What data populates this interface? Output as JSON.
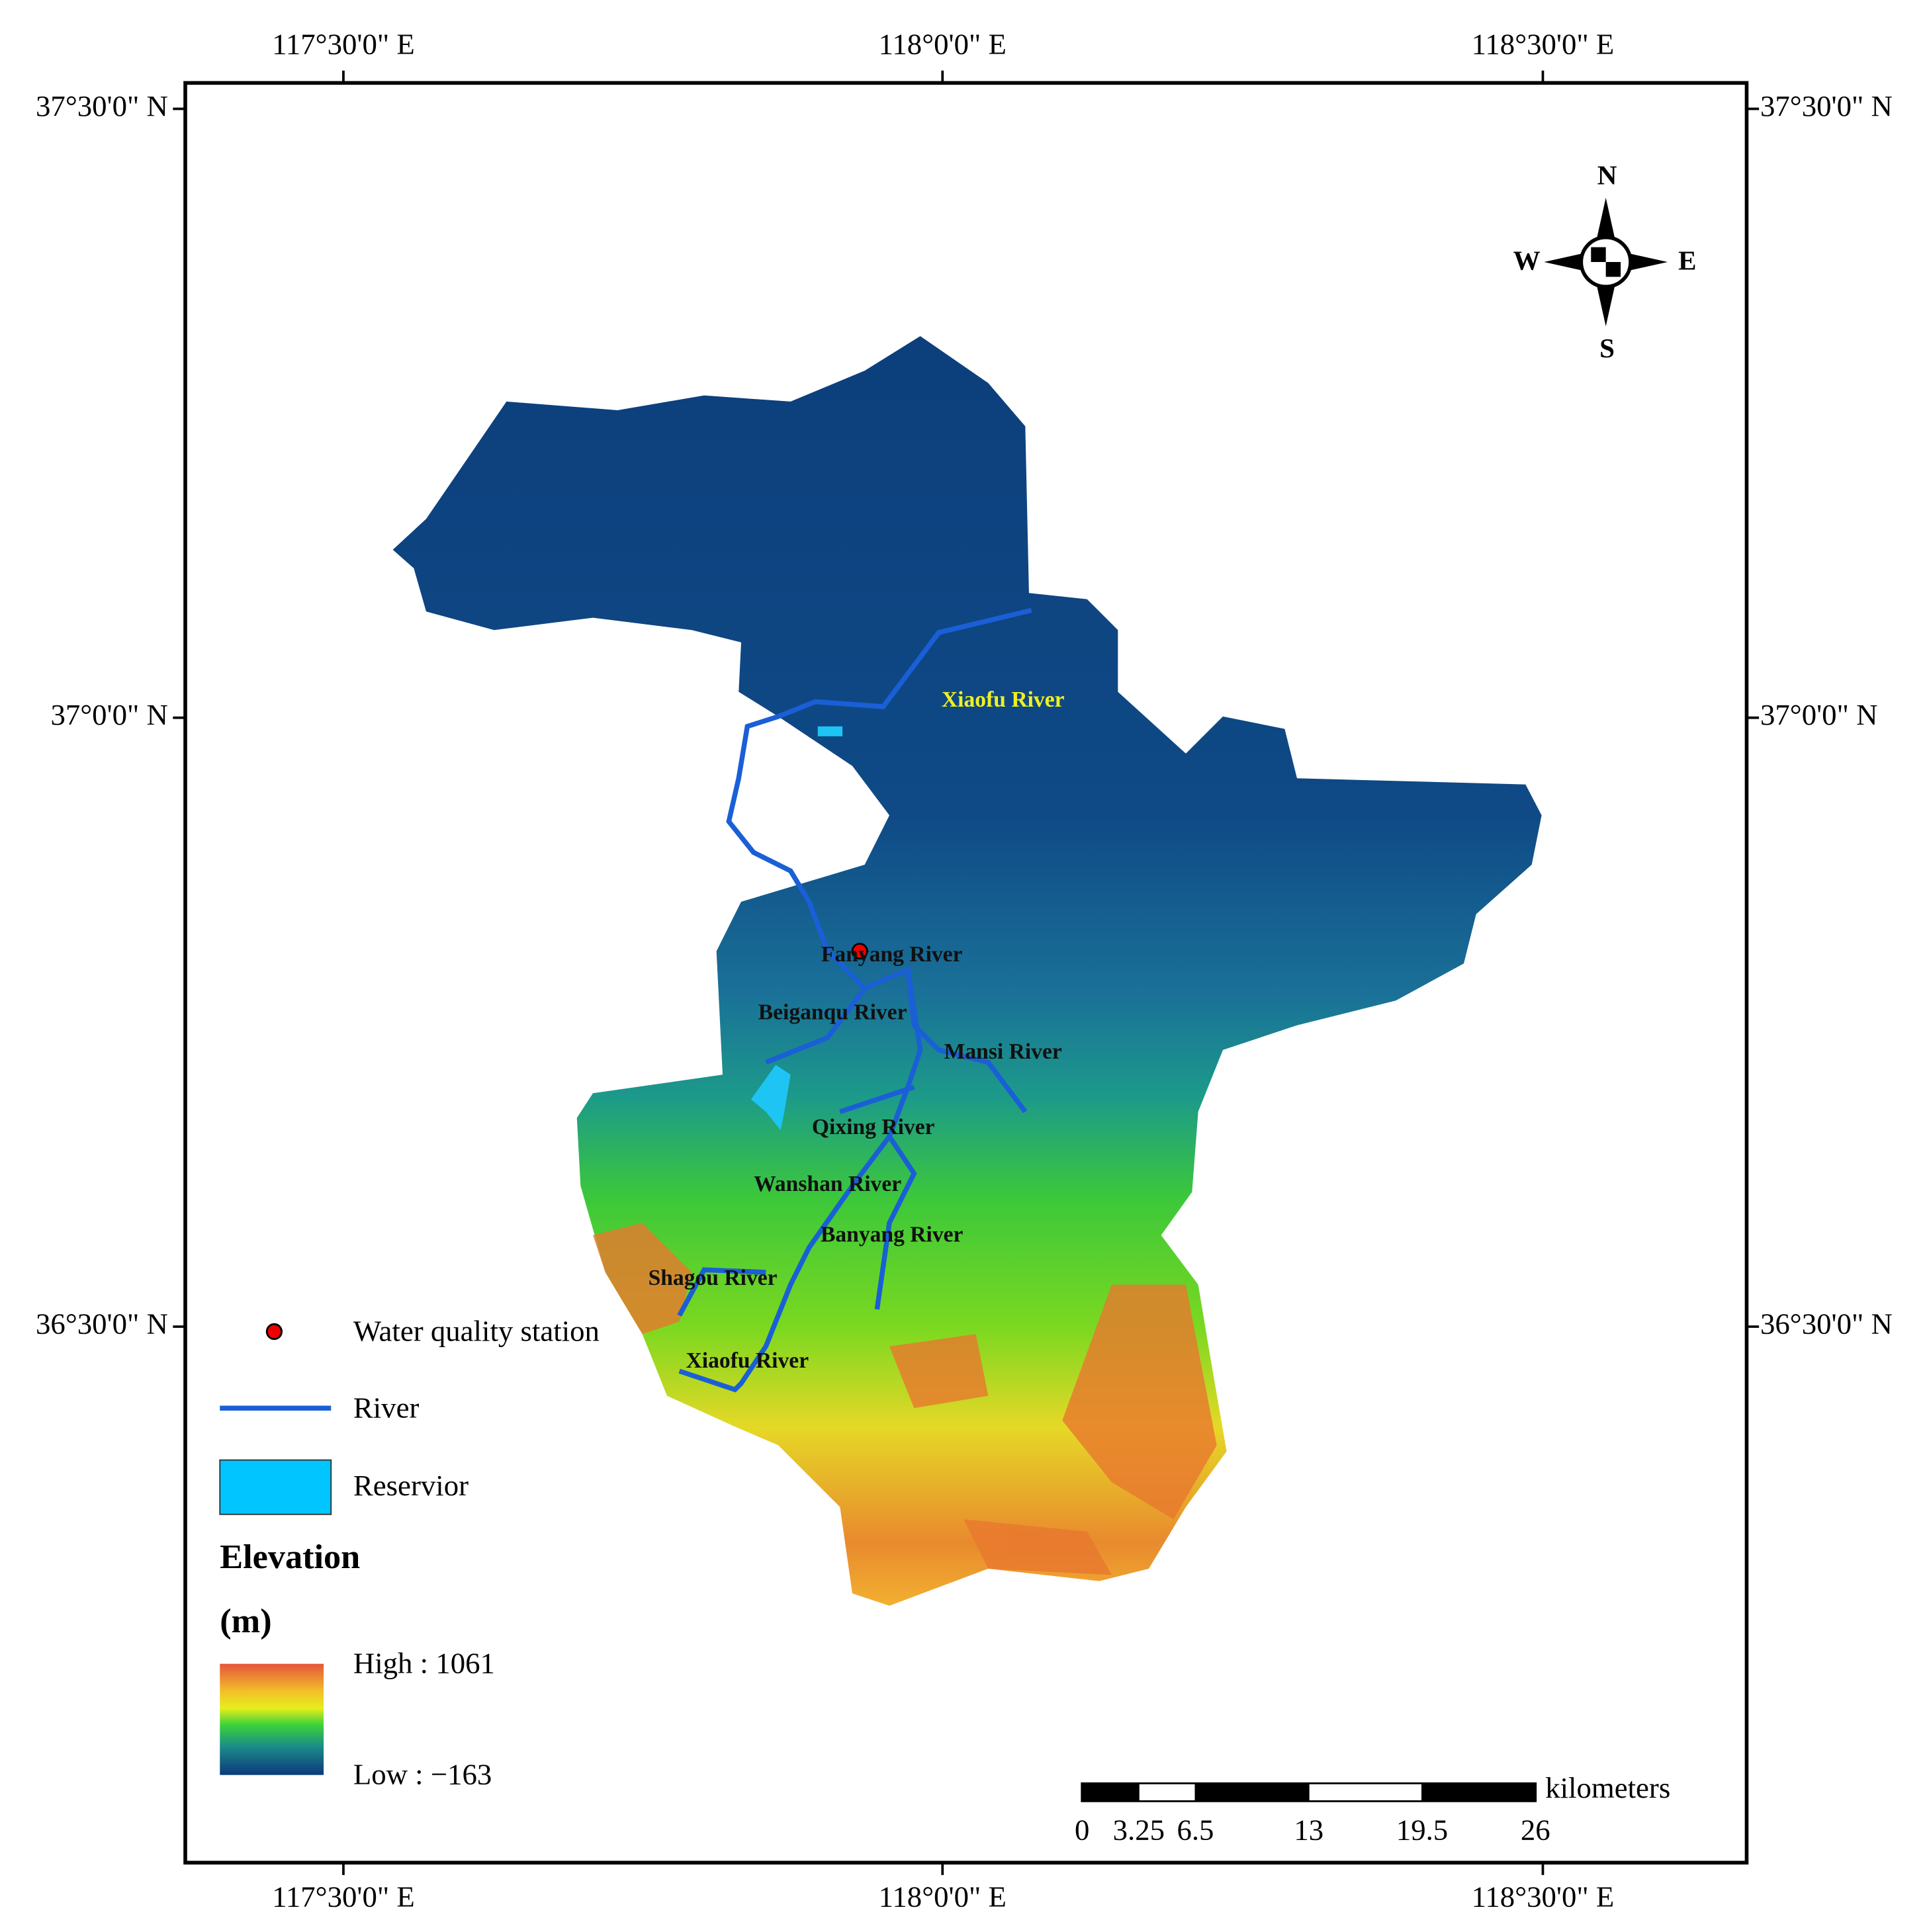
{
  "coordinates": {
    "top": [
      "117°30'0\" E",
      "118°0'0\" E",
      "118°30'0\" E"
    ],
    "bottom": [
      "117°30'0\" E",
      "118°0'0\" E",
      "118°30'0\" E"
    ],
    "left": [
      "37°30'0\" N",
      "37°0'0\" N",
      "36°30'0\" N"
    ],
    "right": [
      "37°30'0\" N",
      "37°0'0\" N",
      "36°30'0\" N"
    ]
  },
  "compass": {
    "north": "N",
    "south": "S",
    "west": "W",
    "east": "E"
  },
  "rivers": [
    "Xiaofu River",
    "Fanyang River",
    "Beiganqu River",
    "Mansi River",
    "Qixing River",
    "Wanshan River",
    "Banyang River",
    "Shagou River",
    "Xiaofu River"
  ],
  "legend": {
    "items": [
      "Water quality station",
      "River",
      "Reservior"
    ],
    "elevation": {
      "title": "Elevation",
      "unit": "(m)",
      "high": "High : 1061",
      "low": "Low : −163"
    }
  },
  "scale_bar": {
    "ticks": [
      0,
      3.25,
      6.5,
      13,
      19.5,
      26
    ],
    "unit": "kilometers"
  }
}
